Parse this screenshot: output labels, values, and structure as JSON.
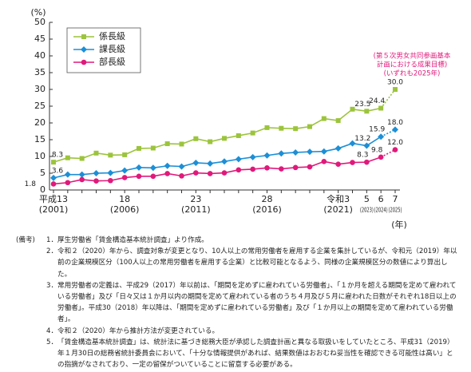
{
  "chart_data": {
    "type": "line",
    "y_unit": "(%)",
    "x_unit": "(年)",
    "categories": [
      "平成13",
      null,
      null,
      null,
      null,
      "18",
      null,
      null,
      null,
      null,
      "23",
      null,
      null,
      null,
      null,
      "28",
      null,
      null,
      null,
      null,
      "令和3",
      null,
      "5",
      "6",
      "7"
    ],
    "category_sublabels": [
      "(2001)",
      null,
      null,
      null,
      null,
      "(2006)",
      null,
      null,
      null,
      null,
      "(2011)",
      null,
      null,
      null,
      null,
      "(2016)",
      null,
      null,
      null,
      null,
      "(2021)",
      null,
      "(2023)",
      "(2024)",
      "(2025)"
    ],
    "ylim": [
      0,
      50
    ],
    "yticks": [
      0,
      5,
      10,
      15,
      20,
      25,
      30,
      35,
      40,
      45,
      50
    ],
    "last_segment_dashed": true,
    "series": [
      {
        "name": "係長級",
        "color": "#9cc43c",
        "marker": "square",
        "values": [
          8.3,
          9.6,
          9.4,
          11.0,
          10.4,
          10.5,
          12.4,
          12.5,
          13.8,
          13.7,
          15.3,
          14.4,
          15.4,
          16.2,
          17.0,
          18.6,
          18.4,
          18.3,
          18.9,
          21.3,
          20.7,
          24.1,
          23.5,
          24.4,
          30.0
        ],
        "value_labels": [
          "8.3",
          null,
          null,
          null,
          null,
          null,
          null,
          null,
          null,
          null,
          null,
          null,
          null,
          null,
          null,
          null,
          null,
          null,
          null,
          null,
          null,
          null,
          "23.5",
          "24.4",
          "30.0"
        ]
      },
      {
        "name": "課長級",
        "color": "#1c8fd6",
        "marker": "diamond",
        "values": [
          3.6,
          4.6,
          4.6,
          5.0,
          5.1,
          5.8,
          6.7,
          6.6,
          7.2,
          7.0,
          8.1,
          7.9,
          8.5,
          9.2,
          9.8,
          10.3,
          10.9,
          11.2,
          11.4,
          11.5,
          12.4,
          13.9,
          13.2,
          15.9,
          18.0
        ],
        "value_labels": [
          "3.6",
          null,
          null,
          null,
          null,
          null,
          null,
          null,
          null,
          null,
          null,
          null,
          null,
          null,
          null,
          null,
          null,
          null,
          null,
          null,
          null,
          null,
          "13.2",
          "15.9",
          "18.0"
        ]
      },
      {
        "name": "部長級",
        "color": "#e0197b",
        "marker": "circle",
        "values": [
          1.8,
          2.2,
          3.1,
          2.7,
          2.8,
          3.7,
          4.1,
          4.1,
          4.9,
          4.2,
          5.1,
          4.9,
          5.1,
          6.0,
          6.2,
          6.6,
          6.3,
          6.7,
          6.9,
          8.5,
          7.7,
          8.2,
          8.3,
          9.8,
          12.0
        ],
        "value_labels": [
          "1.8",
          null,
          null,
          null,
          null,
          null,
          null,
          null,
          null,
          null,
          null,
          null,
          null,
          null,
          null,
          null,
          null,
          null,
          null,
          null,
          null,
          null,
          "8.3",
          "9.8",
          "12.0"
        ]
      }
    ],
    "annotation": [
      "(第５次男女共同参画基本",
      "計画における成果目標)",
      "(いずれも2025年)"
    ]
  },
  "notes": {
    "title": "(備考)",
    "items": [
      {
        "number": "1．",
        "text": "厚生労働省「賃金構造基本統計調査」より作成。"
      },
      {
        "number": "2．",
        "text": "令和２（2020）年から、調査対象が変更となり、10人以上の常用労働者を雇用する企業を集計しているが、令和元（2019）年以前の企業規模区分（100人以上の常用労働者を雇用する企業）と比較可能となるよう、同様の企業規模区分の数値により算出した。"
      },
      {
        "number": "3．",
        "text": "常用労働者の定義は、平成29（2017）年以前は、「期間を定めずに雇われている労働者」、「１か月を超える期間を定めて雇われている労働者」及び「日々又は１か月以内の期間を定めて雇われている者のうち４月及び５月に雇われた日数がそれぞれ18日以上の労働者」。平成30（2018）年以降は、「期間を定めずに雇われている労働者」及び「１か月以上の期間を定めて雇われている労働者」。"
      },
      {
        "number": "4．",
        "text": "令和２（2020）年から推計方法が変更されている。"
      },
      {
        "number": "5．",
        "text": "「賃金構造基本統計調査」は、統計法に基づき総務大臣が承認した調査計画と異なる取扱いをしていたところ、平成31（2019）年１月30日の総務省統計委員会において、「十分な情報提供があれば、結果数値はおおむね妥当性を確認できる可能性は高い」との指摘がなされており、一定の留保がついていることに留意する必要がある。"
      }
    ]
  }
}
